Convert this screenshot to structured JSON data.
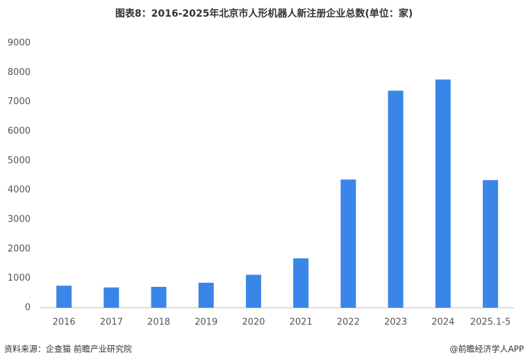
{
  "chart_data": {
    "type": "bar",
    "title": "图表8：2016-2025年北京市人形机器人新注册企业总数(单位：家)",
    "categories": [
      "2016",
      "2017",
      "2018",
      "2019",
      "2020",
      "2021",
      "2022",
      "2023",
      "2024",
      "2025.1-5"
    ],
    "values": [
      750,
      690,
      710,
      850,
      1120,
      1680,
      4360,
      7380,
      7760,
      4340
    ],
    "color": "#3a86e8",
    "ylim": [
      0,
      9000
    ],
    "yticks": [
      0,
      1000,
      2000,
      3000,
      4000,
      5000,
      6000,
      7000,
      8000,
      9000
    ],
    "grid": false,
    "source": "资料来源：企查猫 前瞻产业研究院",
    "credit": "@前瞻经济学人APP"
  }
}
